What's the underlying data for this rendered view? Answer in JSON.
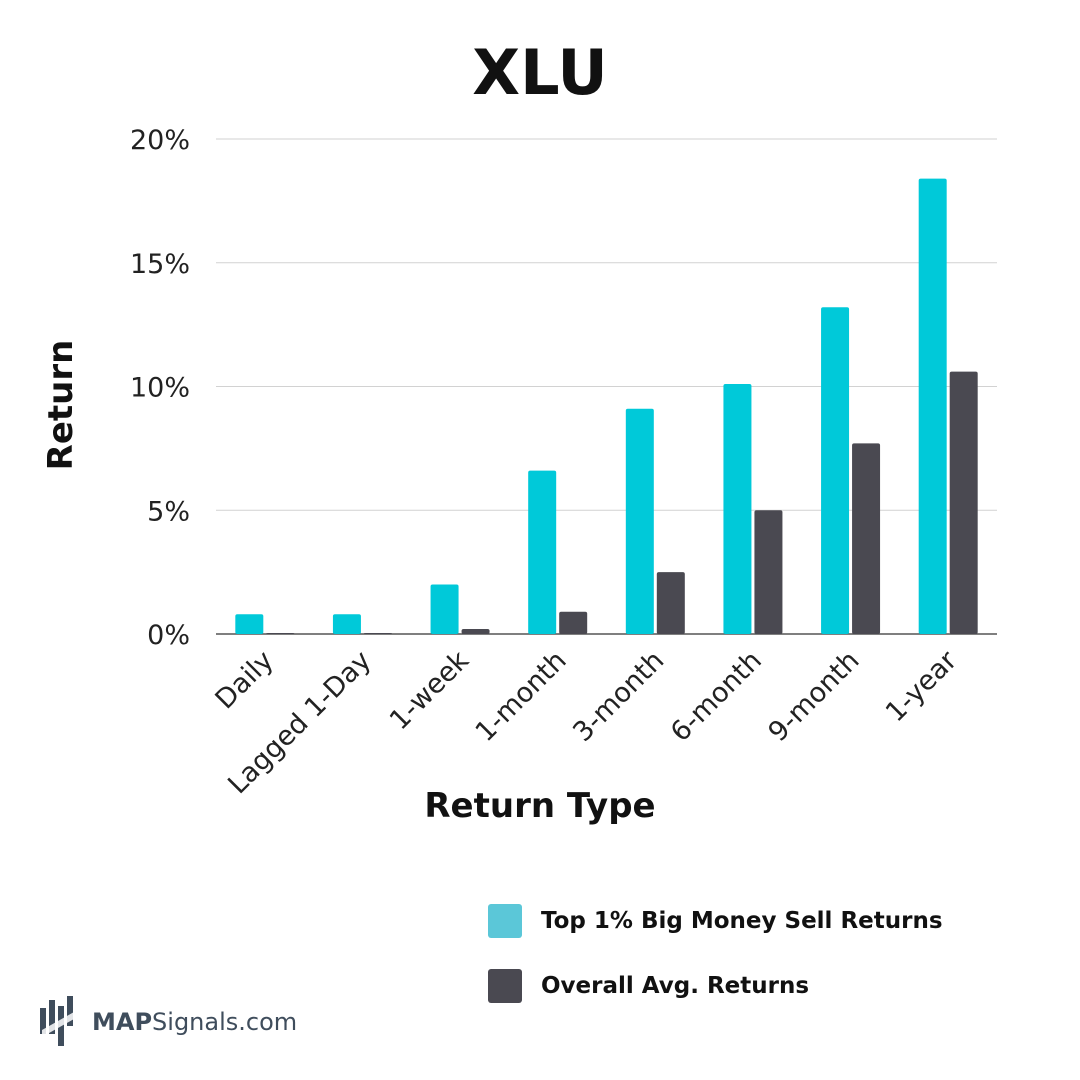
{
  "chart_data": {
    "type": "bar",
    "title": "XLU",
    "xlabel": "Return Type",
    "ylabel": "Return",
    "categories": [
      "Daily",
      "Lagged 1-Day",
      "1-week",
      "1-month",
      "3-month",
      "6-month",
      "9-month",
      "1-year"
    ],
    "series": [
      {
        "name": "Top 1% Big Money Sell Returns",
        "color": "#00c9d9",
        "values": [
          0.8,
          0.8,
          2.0,
          6.6,
          9.1,
          10.1,
          13.2,
          18.4
        ]
      },
      {
        "name": "Overall Avg. Returns",
        "color": "#4a4951",
        "values": [
          0.03,
          0.03,
          0.2,
          0.9,
          2.5,
          5.0,
          7.7,
          10.6
        ]
      }
    ],
    "ylim": [
      0,
      20
    ],
    "yticks": [
      0,
      5,
      10,
      15,
      20
    ],
    "ytick_labels": [
      "0%",
      "5%",
      "10%",
      "15%",
      "20%"
    ],
    "grid": true,
    "legend_position": "bottom-right",
    "legend_colors": [
      "#5bc7d8",
      "#4a4951"
    ]
  },
  "brand": {
    "logo_icon": "mapsignals-logo-icon",
    "name_bold": "MAP",
    "name_rest": "Signals.com"
  }
}
